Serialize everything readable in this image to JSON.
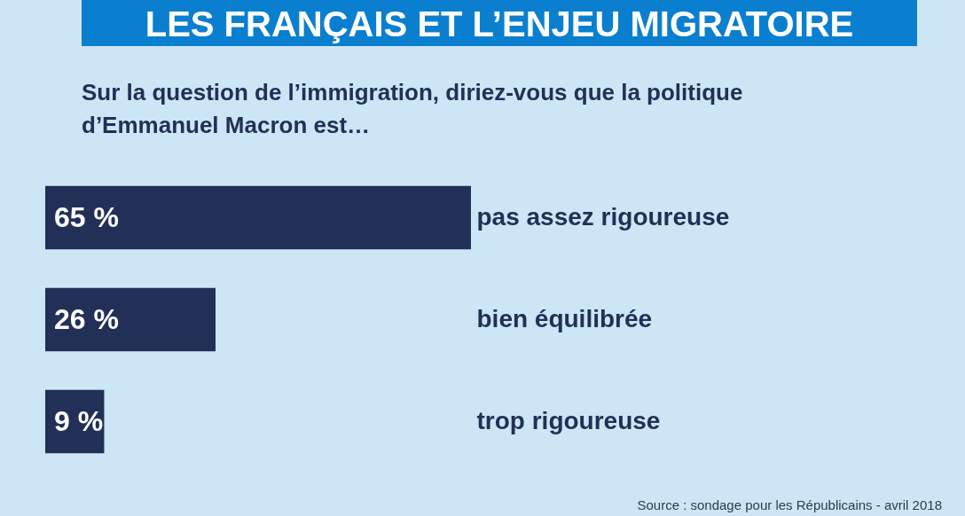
{
  "chart_data": {
    "type": "bar",
    "orientation": "horizontal",
    "title": "LES FRANÇAIS ET L’ENJEU MIGRATOIRE",
    "subtitle": "Sur la question de l’immigration, diriez-vous que la politique d’Emmanuel Macron est…",
    "categories": [
      "pas assez rigoureuse",
      "bien équilibrée",
      "trop rigoureuse"
    ],
    "values": [
      65,
      26,
      9
    ],
    "value_labels": [
      "65 %",
      "26 %",
      "9 %"
    ],
    "color": "#223057",
    "annotations": [
      "Source : sondage pour les Républicains - avril 2018"
    ]
  }
}
